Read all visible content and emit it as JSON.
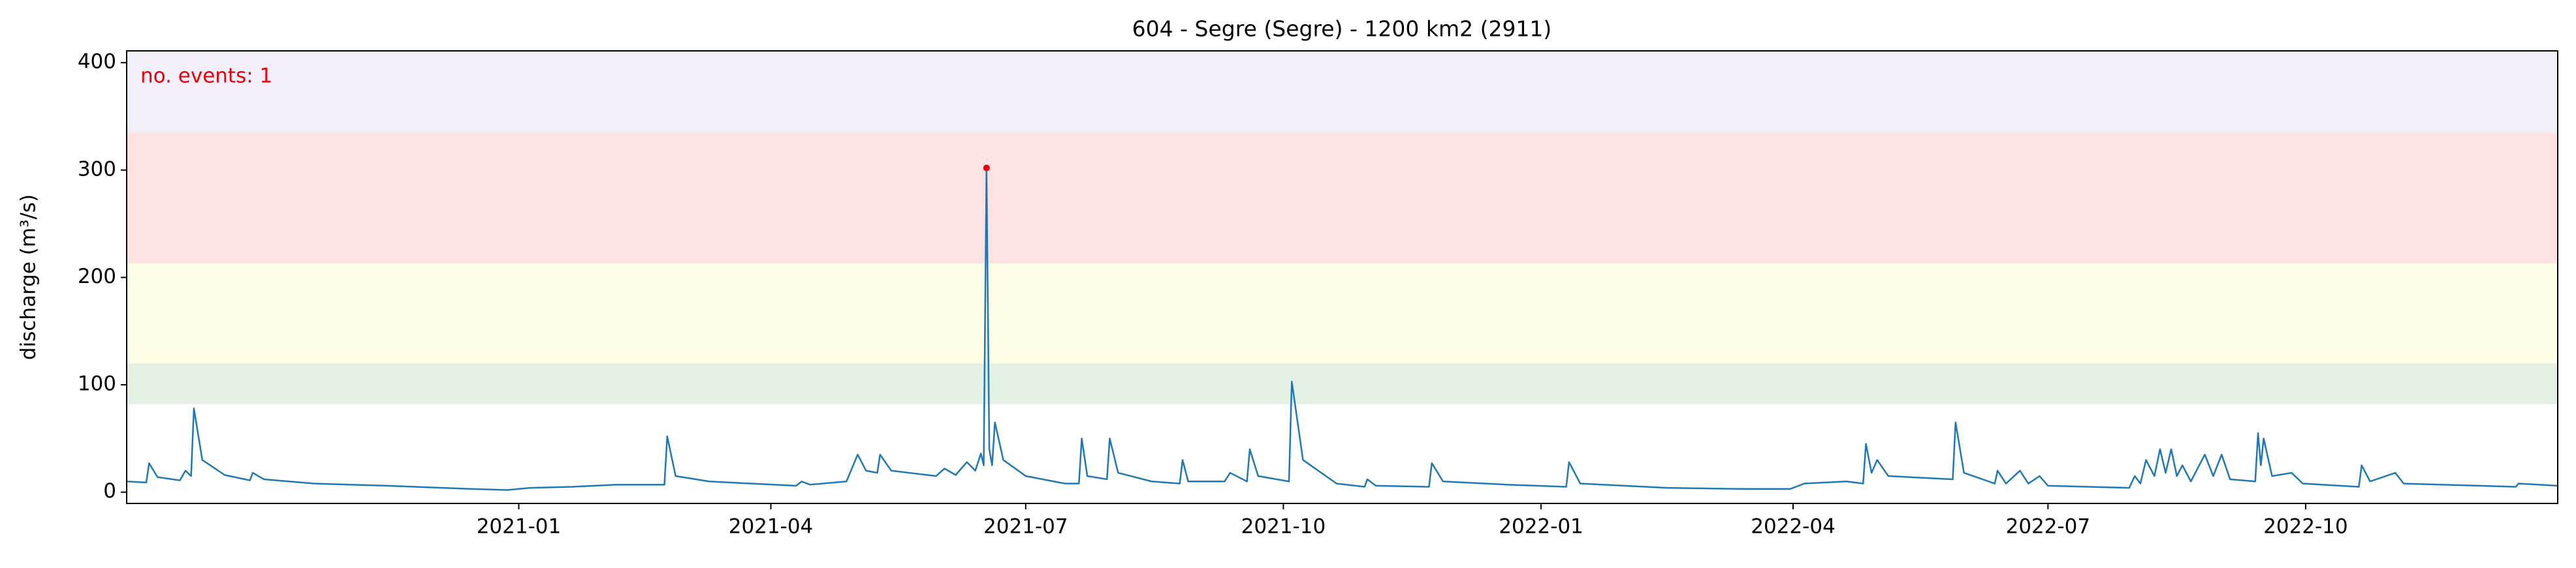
{
  "chart_data": {
    "type": "line",
    "title": "604 - Segre (Segre) - 1200 km2 (2911)",
    "y_label": "discharge (m³/s)",
    "annotation": "no. events: 1",
    "annotation_color": "#e8000b",
    "xlim": [
      "2020-08-14",
      "2022-12-30"
    ],
    "xticks": [
      {
        "value": "2021-01-01",
        "label": "2021-01"
      },
      {
        "value": "2021-04-01",
        "label": "2021-04"
      },
      {
        "value": "2021-07-01",
        "label": "2021-07"
      },
      {
        "value": "2021-10-01",
        "label": "2021-10"
      },
      {
        "value": "2022-01-01",
        "label": "2022-01"
      },
      {
        "value": "2022-04-01",
        "label": "2022-04"
      },
      {
        "value": "2022-07-01",
        "label": "2022-07"
      },
      {
        "value": "2022-10-01",
        "label": "2022-10"
      }
    ],
    "ylim": [
      -10.5,
      411
    ],
    "yticks": [
      0,
      100,
      200,
      300,
      400
    ],
    "grid": false,
    "bands": [
      {
        "from": 82,
        "to": 120,
        "color": "#e5f0e5"
      },
      {
        "from": 120,
        "to": 213,
        "color": "#fefde5"
      },
      {
        "from": 213,
        "to": 335,
        "color": "#fee2e3"
      },
      {
        "from": 335,
        "to": 411,
        "color": "#f2eff9"
      }
    ],
    "x": [
      "2020-08-14",
      "2020-08-21",
      "2020-08-22",
      "2020-08-25",
      "2020-09-02",
      "2020-09-04",
      "2020-09-06",
      "2020-09-07",
      "2020-09-10",
      "2020-09-18",
      "2020-09-27",
      "2020-09-28",
      "2020-10-02",
      "2020-10-20",
      "2020-11-15",
      "2020-12-15",
      "2020-12-28",
      "2021-01-05",
      "2021-01-20",
      "2021-02-05",
      "2021-02-22",
      "2021-02-23",
      "2021-02-26",
      "2021-03-10",
      "2021-03-25",
      "2021-04-10",
      "2021-04-12",
      "2021-04-15",
      "2021-04-28",
      "2021-05-02",
      "2021-05-05",
      "2021-05-09",
      "2021-05-10",
      "2021-05-14",
      "2021-05-30",
      "2021-06-02",
      "2021-06-06",
      "2021-06-10",
      "2021-06-13",
      "2021-06-15",
      "2021-06-16",
      "2021-06-17",
      "2021-06-18",
      "2021-06-19",
      "2021-06-20",
      "2021-06-23",
      "2021-07-01",
      "2021-07-15",
      "2021-07-20",
      "2021-07-21",
      "2021-07-23",
      "2021-07-30",
      "2021-07-31",
      "2021-08-03",
      "2021-08-15",
      "2021-08-25",
      "2021-08-26",
      "2021-08-28",
      "2021-09-10",
      "2021-09-12",
      "2021-09-18",
      "2021-09-19",
      "2021-09-22",
      "2021-10-03",
      "2021-10-04",
      "2021-10-08",
      "2021-10-20",
      "2021-10-30",
      "2021-10-31",
      "2021-11-03",
      "2021-11-22",
      "2021-11-23",
      "2021-11-27",
      "2021-12-20",
      "2022-01-10",
      "2022-01-11",
      "2022-01-15",
      "2022-02-15",
      "2022-03-15",
      "2022-03-31",
      "2022-04-05",
      "2022-04-20",
      "2022-04-26",
      "2022-04-27",
      "2022-04-29",
      "2022-05-01",
      "2022-05-05",
      "2022-05-28",
      "2022-05-29",
      "2022-06-01",
      "2022-06-12",
      "2022-06-13",
      "2022-06-16",
      "2022-06-21",
      "2022-06-24",
      "2022-06-28",
      "2022-07-01",
      "2022-07-30",
      "2022-08-01",
      "2022-08-03",
      "2022-08-05",
      "2022-08-08",
      "2022-08-10",
      "2022-08-12",
      "2022-08-14",
      "2022-08-16",
      "2022-08-18",
      "2022-08-21",
      "2022-08-26",
      "2022-08-29",
      "2022-09-01",
      "2022-09-04",
      "2022-09-13",
      "2022-09-14",
      "2022-09-15",
      "2022-09-16",
      "2022-09-19",
      "2022-09-26",
      "2022-09-30",
      "2022-10-20",
      "2022-10-21",
      "2022-10-24",
      "2022-11-02",
      "2022-11-05",
      "2022-12-15",
      "2022-12-16",
      "2022-12-30"
    ],
    "series": [
      {
        "color": "#1f77b4",
        "values": [
          10,
          9,
          27,
          14,
          11,
          20,
          15,
          78,
          30,
          16,
          11,
          18,
          12,
          8,
          6,
          3,
          2,
          4,
          5,
          7,
          7,
          52,
          15,
          10,
          8,
          6,
          10,
          7,
          10,
          35,
          20,
          18,
          35,
          20,
          15,
          22,
          16,
          28,
          20,
          36,
          25,
          302,
          40,
          25,
          65,
          30,
          15,
          8,
          8,
          50,
          15,
          12,
          50,
          18,
          10,
          8,
          30,
          10,
          10,
          18,
          10,
          40,
          15,
          10,
          103,
          30,
          8,
          5,
          12,
          6,
          5,
          27,
          10,
          7,
          5,
          28,
          8,
          4,
          3,
          3,
          8,
          10,
          8,
          45,
          18,
          30,
          15,
          12,
          65,
          18,
          8,
          20,
          8,
          20,
          8,
          15,
          6,
          4,
          15,
          8,
          30,
          15,
          40,
          18,
          40,
          15,
          25,
          10,
          35,
          15,
          35,
          12,
          10,
          55,
          25,
          50,
          15,
          18,
          8,
          5,
          25,
          10,
          18,
          8,
          5,
          8,
          6
        ]
      }
    ],
    "events": {
      "color": "#e8000b",
      "x": [
        "2021-06-17"
      ],
      "values": [
        302
      ]
    }
  }
}
